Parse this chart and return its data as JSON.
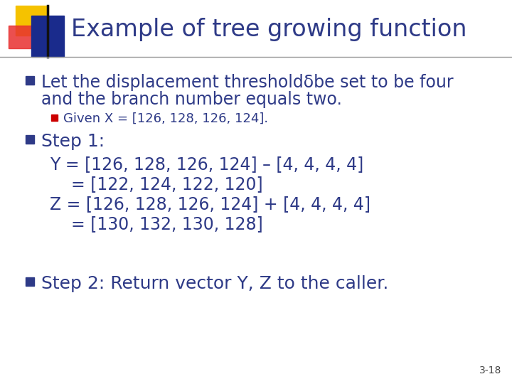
{
  "title": "Example of tree growing function",
  "title_color": "#2E3A87",
  "title_fontsize": 24,
  "bg_color": "#FFFFFF",
  "slide_number": "3-18",
  "bullet_color": "#2E3A87",
  "sub_bullet_color": "#CC0000",
  "bullet1_line1": "Let the displacement thresholdδbe set to be four",
  "bullet1_line2": "and the branch number equals two.",
  "sub_bullet1": "Given X = [126, 128, 126, 124].",
  "bullet2_line1": "Step 1:",
  "step1_y1": "Y = [126, 128, 126, 124] – [4, 4, 4, 4]",
  "step1_y2": "= [122, 124, 122, 120]",
  "step1_z1": "Z = [126, 128, 126, 124] + [4, 4, 4, 4]",
  "step1_z2": "= [130, 132, 130, 128]",
  "bullet3": "Step 2: Return vector Y, Z to the caller.",
  "square_yellow": "#F5C200",
  "square_red": "#E83030",
  "square_blue": "#1A2B8C",
  "main_font_size": 17,
  "sub_font_size": 13,
  "indent_font_size": 17
}
